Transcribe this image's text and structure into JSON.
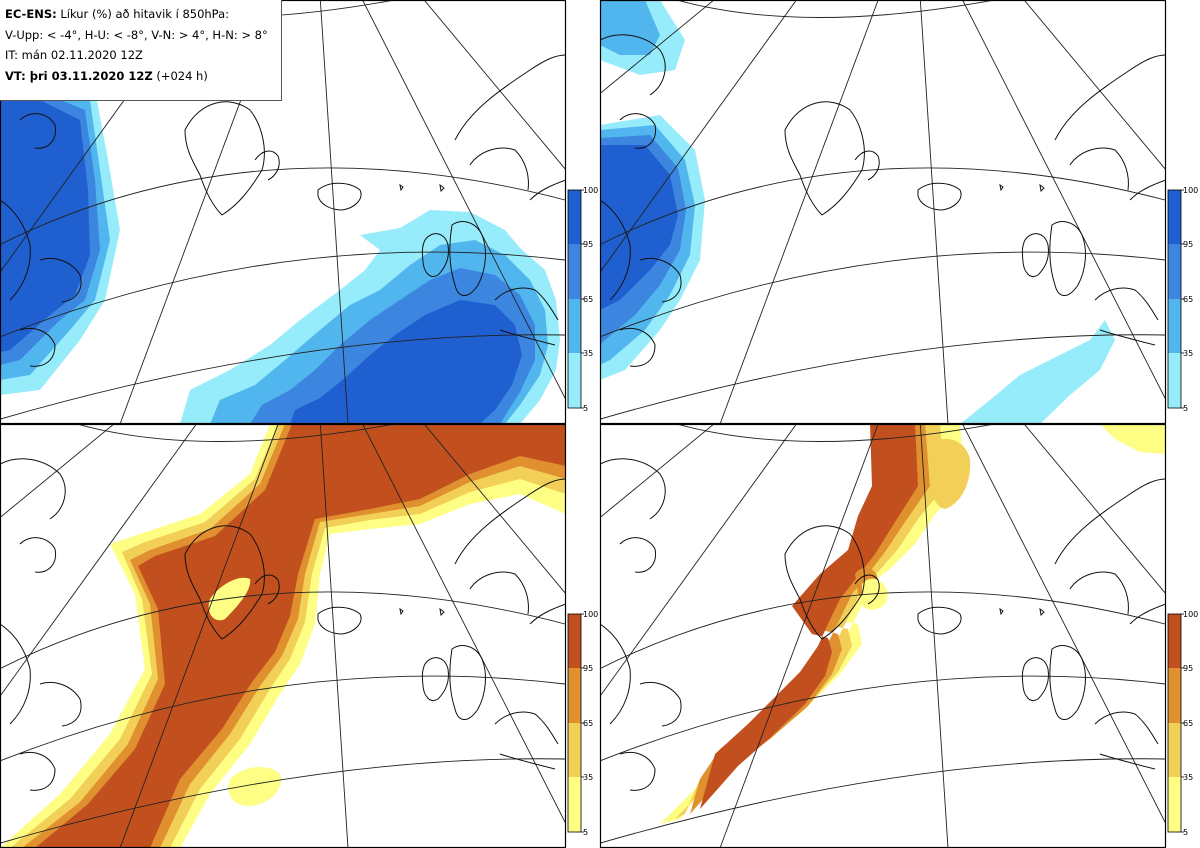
{
  "header": {
    "line1_bold": "EC-ENS:",
    "line1_text": " Líkur (%) að hitavik í 850hPa:",
    "line2": "V-Upp: < -4°, H-U: < -8°, V-N: > 4°, H-N: > 8°",
    "line3": "IT: mán 02.11.2020 12Z",
    "line4_bold": "VT: þri 03.11.2020 12Z",
    "line4_text": " (+024 h)"
  },
  "colorbar": {
    "ticks": [
      "100",
      "95",
      "65",
      "35",
      "5"
    ],
    "cold_colors": [
      "#1f5fd0",
      "#3c86e0",
      "#52b6ee",
      "#96ecfa"
    ],
    "warm_colors": [
      "#c1501e",
      "#e0902f",
      "#f2d058",
      "#fefd84"
    ]
  },
  "panels": [
    {
      "id": "V-Upp",
      "scheme": "cold"
    },
    {
      "id": "H-U",
      "scheme": "cold"
    },
    {
      "id": "V-N",
      "scheme": "warm"
    },
    {
      "id": "H-N",
      "scheme": "warm"
    }
  ]
}
